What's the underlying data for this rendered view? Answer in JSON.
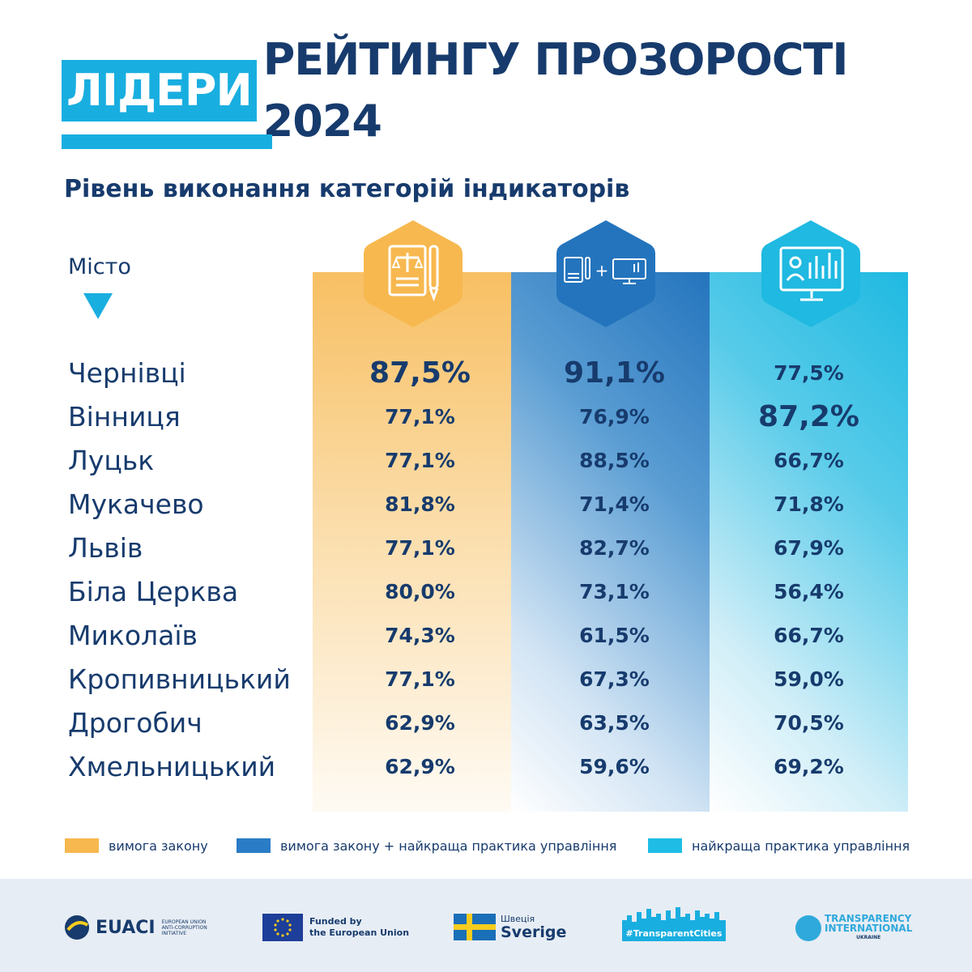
{
  "header": {
    "title_highlight": "ЛІДЕРИ",
    "title_rest": "РЕЙТИНГУ ПРОЗОРОСТІ 2024",
    "subtitle": "Рівень виконання категорій індикаторів",
    "city_column_label": "Місто"
  },
  "colors": {
    "accent": "#19aee0",
    "text": "#173b6d",
    "law": "#f7b84f",
    "law_plus_best": "#2a7cc7",
    "best_practice": "#1fbde6"
  },
  "icons": {
    "law": "legal-document-pen-icon",
    "law_plus_best": "document-plus-computer-icon",
    "best_practice": "computer-analytics-icon"
  },
  "chart_data": {
    "type": "table",
    "columns": [
      "Місто",
      "вимога закону",
      "вимога закону + найкраща практика управління",
      "найкраща практика управління"
    ],
    "rows": [
      {
        "city": "Чернівці",
        "law": "87,5%",
        "law_plus_best": "91,1%",
        "best": "77,5%"
      },
      {
        "city": "Вінниця",
        "law": "77,1%",
        "law_plus_best": "76,9%",
        "best": "87,2%"
      },
      {
        "city": "Луцьк",
        "law": "77,1%",
        "law_plus_best": "88,5%",
        "best": "66,7%"
      },
      {
        "city": "Мукачево",
        "law": "81,8%",
        "law_plus_best": "71,4%",
        "best": "71,8%"
      },
      {
        "city": "Львів",
        "law": "77,1%",
        "law_plus_best": "82,7%",
        "best": "67,9%"
      },
      {
        "city": "Біла Церква",
        "law": "80,0%",
        "law_plus_best": "73,1%",
        "best": "56,4%"
      },
      {
        "city": "Миколаїв",
        "law": "74,3%",
        "law_plus_best": "61,5%",
        "best": "66,7%"
      },
      {
        "city": "Кропивницький",
        "law": "77,1%",
        "law_plus_best": "67,3%",
        "best": "59,0%"
      },
      {
        "city": "Дрогобич",
        "law": "62,9%",
        "law_plus_best": "63,5%",
        "best": "70,5%"
      },
      {
        "city": "Хмельницький",
        "law": "62,9%",
        "law_plus_best": "59,6%",
        "best": "69,2%"
      }
    ],
    "highlighted": {
      "law": "87,5%",
      "law_plus_best": "91,1%",
      "best": "87,2%"
    }
  },
  "legend": {
    "law": "вимога закону",
    "law_plus_best": "вимога закону + найкраща практика управління",
    "best_practice": "найкраща практика управління"
  },
  "footer": {
    "euaci_name": "EUACI",
    "euaci_sub": "EUROPEAN UNION ANTI-CORRUPTION INITIATIVE",
    "eu_line1": "Funded by",
    "eu_line2": "the European Union",
    "se_line1": "Швеція",
    "se_line2": "Sverige",
    "tc_tag": "#TransparentCities",
    "ti_line1": "TRANSPARENCY",
    "ti_line2": "INTERNATIONAL",
    "ti_line3": "UKRAINE"
  }
}
